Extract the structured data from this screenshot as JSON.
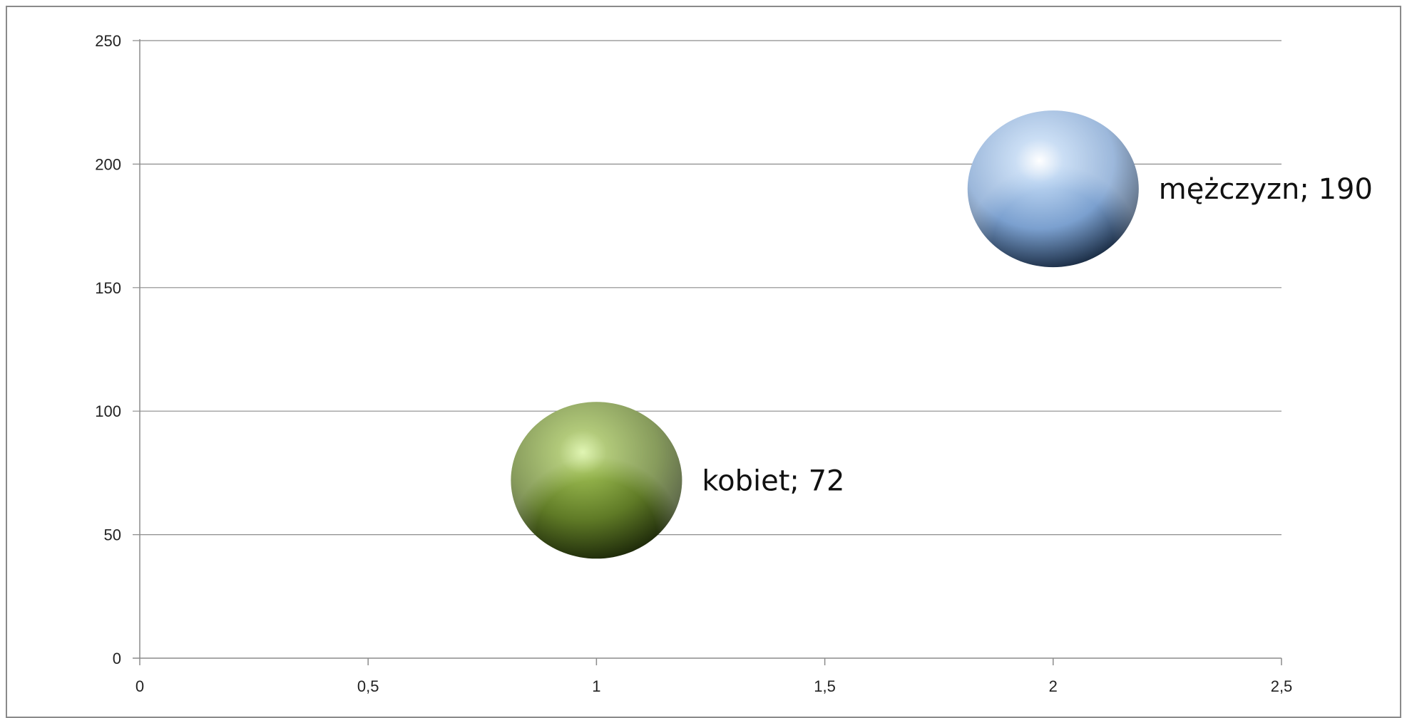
{
  "chart_data": {
    "type": "bubble",
    "title": "",
    "xlabel": "",
    "ylabel": "",
    "xlim": [
      0,
      2.5
    ],
    "ylim": [
      0,
      250
    ],
    "x_ticks": [
      "0",
      "0,5",
      "1",
      "1,5",
      "2",
      "2,5"
    ],
    "y_ticks": [
      "0",
      "50",
      "100",
      "150",
      "200",
      "250"
    ],
    "x_tick_values": [
      0,
      0.5,
      1,
      1.5,
      2,
      2.5
    ],
    "y_tick_values": [
      0,
      50,
      100,
      150,
      200,
      250
    ],
    "grid": "horizontal",
    "legend": "none",
    "points": [
      {
        "x": 1,
        "y": 72,
        "label": "kobiet; 72",
        "color": "#7a9a3a"
      },
      {
        "x": 2,
        "y": 190,
        "label": "mężczyzn; 190",
        "color": "#8eb4e3"
      }
    ]
  }
}
